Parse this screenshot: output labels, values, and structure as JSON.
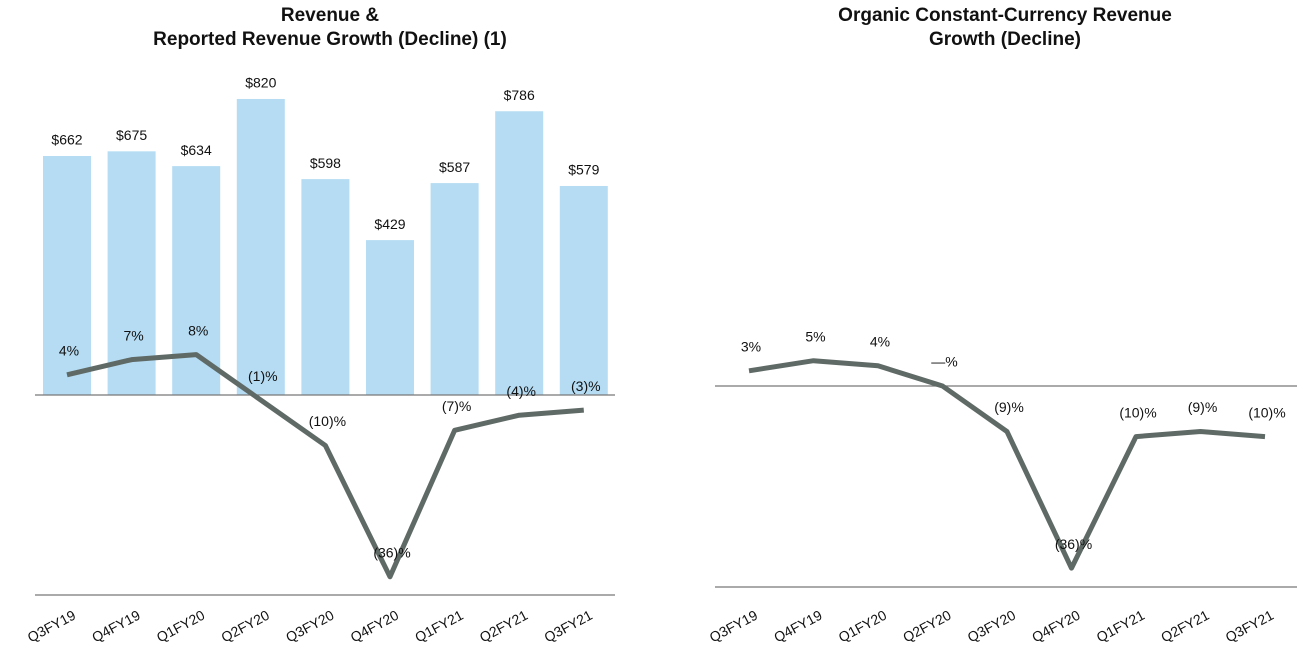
{
  "chart_data": [
    {
      "type": "bar",
      "title": "Revenue &\nReported Revenue Growth (Decline) (1)",
      "categories": [
        "Q3FY19",
        "Q4FY19",
        "Q1FY20",
        "Q2FY20",
        "Q3FY20",
        "Q4FY20",
        "Q1FY21",
        "Q2FY21",
        "Q3FY21"
      ],
      "series": [
        {
          "type": "bar",
          "color": "#b5dcf3",
          "values": [
            662,
            675,
            634,
            820,
            598,
            429,
            587,
            786,
            579
          ],
          "value_labels": [
            "$662",
            "$675",
            "$634",
            "$820",
            "$598",
            "$429",
            "$587",
            "$786",
            "$579"
          ]
        },
        {
          "type": "line",
          "axis": "y2",
          "color": "#5f6a66",
          "values": [
            4,
            7,
            8,
            -1,
            -10,
            -36,
            -7,
            -4,
            -3
          ],
          "value_labels": [
            "4%",
            "7%",
            "8%",
            "(1)%",
            "(10)%",
            "(36)%",
            "(7)%",
            "(4)%",
            "(3)%"
          ]
        }
      ]
    },
    {
      "type": "line",
      "title": "Organic Constant-Currency Revenue\nGrowth (Decline)",
      "categories": [
        "Q3FY19",
        "Q4FY19",
        "Q1FY20",
        "Q2FY20",
        "Q3FY20",
        "Q4FY20",
        "Q1FY21",
        "Q2FY21",
        "Q3FY21"
      ],
      "series": [
        {
          "type": "line",
          "color": "#5f6a66",
          "values": [
            3,
            5,
            4,
            0,
            -9,
            -36,
            -10,
            -9,
            -10
          ],
          "value_labels": [
            "3%",
            "5%",
            "4%",
            "—%",
            "(9)%",
            "(36)%",
            "(10)%",
            "(9)%",
            "(10)%"
          ]
        }
      ]
    }
  ]
}
